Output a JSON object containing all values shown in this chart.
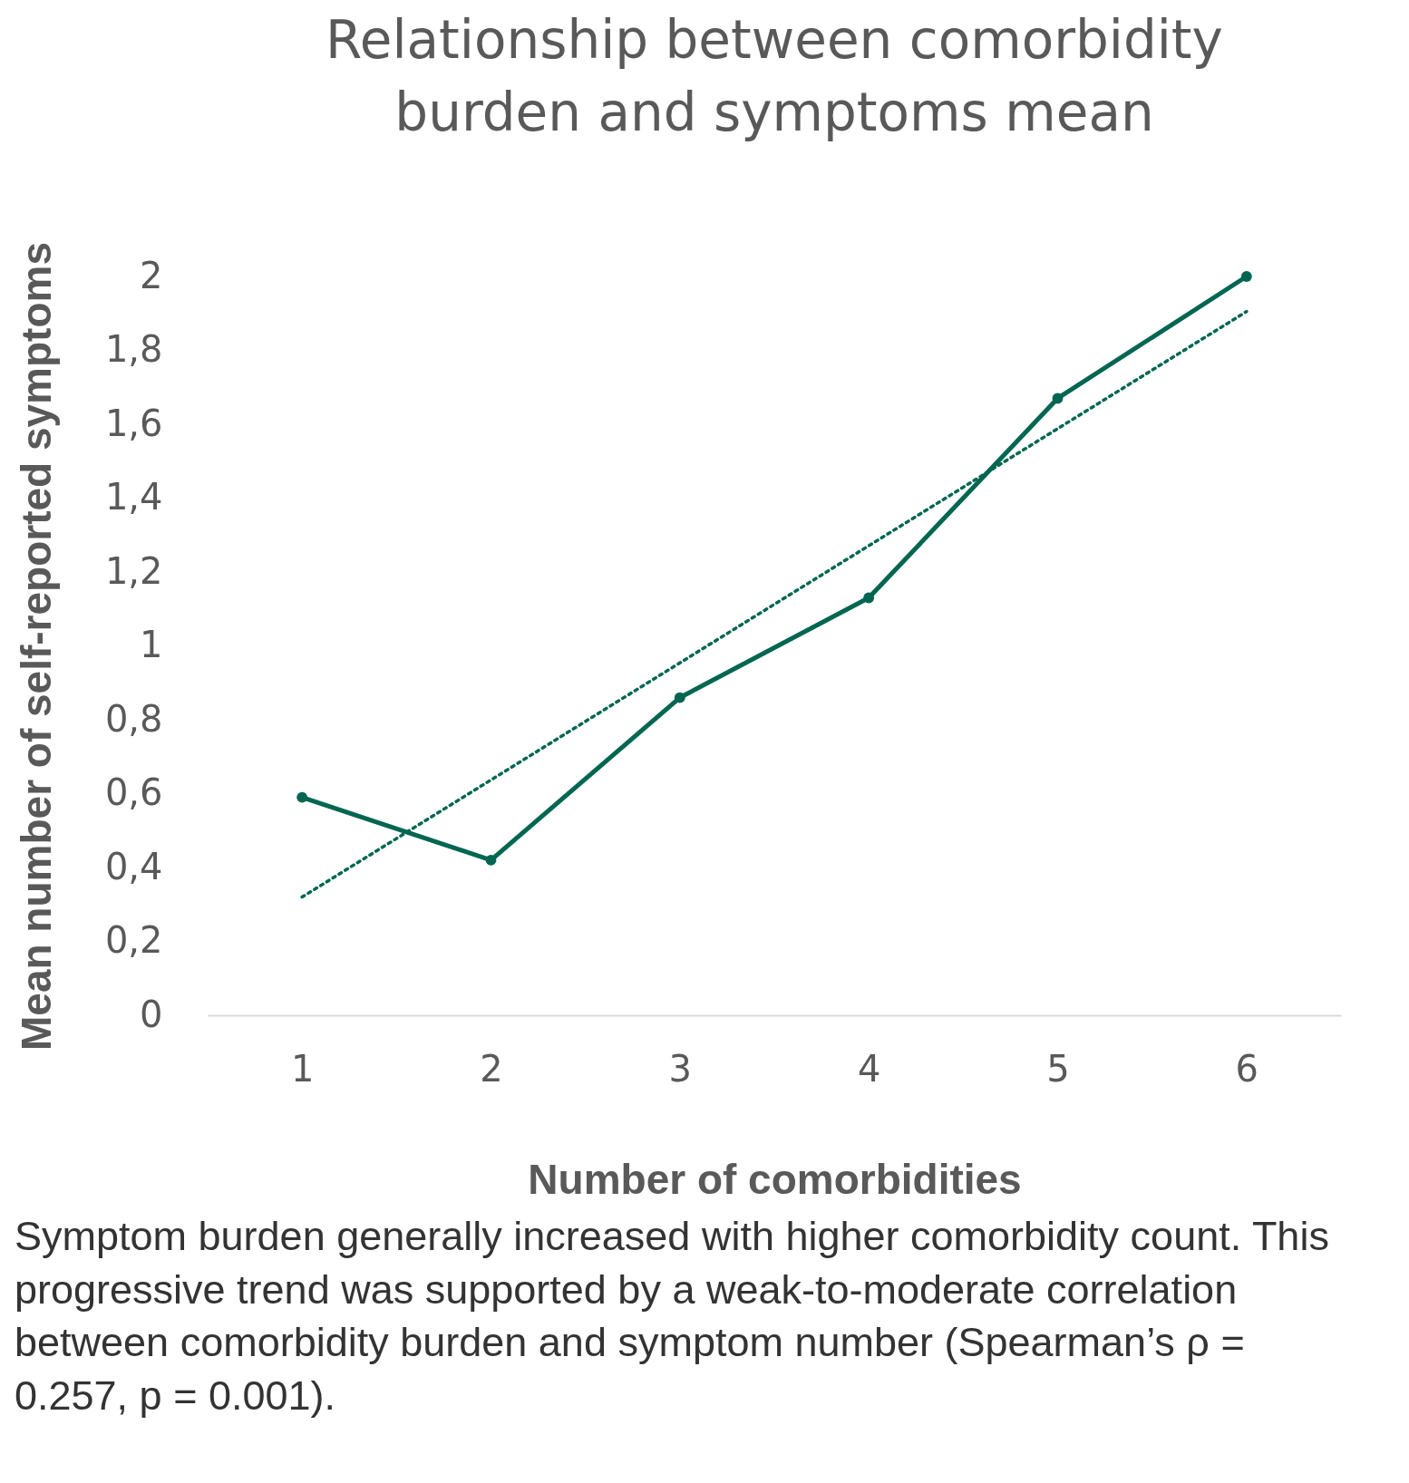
{
  "chart_data": {
    "type": "line",
    "title": "Relationship between comorbidity burden and symptoms mean",
    "xlabel": "Number of comorbidities",
    "ylabel": "Mean number of self-reported symptoms",
    "categories": [
      "1",
      "2",
      "3",
      "4",
      "5",
      "6"
    ],
    "series": [
      {
        "color": "#006652",
        "values": [
          0.59,
          0.42,
          0.86,
          1.13,
          1.67,
          2.0
        ],
        "marker": "circle",
        "line_style": "solid"
      },
      {
        "color": "#006652",
        "values": [
          0.32,
          0.637,
          0.954,
          1.271,
          1.588,
          1.905
        ],
        "marker": "none",
        "line_style": "dotted"
      }
    ],
    "ylim": [
      0,
      2
    ],
    "yticks": [
      0,
      {
        "value": 0.2,
        "label": "0,2"
      },
      {
        "value": 0.4,
        "label": "0,4"
      },
      {
        "value": 0.6,
        "label": "0,6"
      },
      {
        "value": 0.8,
        "label": "0,8"
      },
      1,
      {
        "value": 1.2,
        "label": "1,2"
      },
      {
        "value": 1.4,
        "label": "1,4"
      },
      {
        "value": 1.6,
        "label": "1,6"
      },
      {
        "value": 1.8,
        "label": "1,8"
      },
      2
    ],
    "grid": false,
    "annotations": [
      "Symptom burden generally increased with higher comorbidity count. This progressive trend was supported by a weak-to-moderate correlation between comorbidity burden and symptom number (Spearman’s ρ = 0.257, p = 0.001)."
    ]
  }
}
